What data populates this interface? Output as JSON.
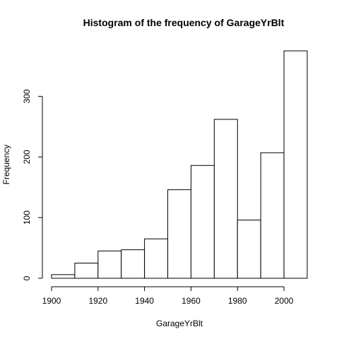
{
  "chart_data": {
    "type": "bar",
    "title": "Histogram of the frequency of GarageYrBlt",
    "xlabel": "GarageYrBlt",
    "ylabel": "Frequency",
    "bins": [
      {
        "x0": 1900,
        "x1": 1910,
        "count": 6
      },
      {
        "x0": 1910,
        "x1": 1920,
        "count": 25
      },
      {
        "x0": 1920,
        "x1": 1930,
        "count": 45
      },
      {
        "x0": 1930,
        "x1": 1940,
        "count": 47
      },
      {
        "x0": 1940,
        "x1": 1950,
        "count": 65
      },
      {
        "x0": 1950,
        "x1": 1960,
        "count": 146
      },
      {
        "x0": 1960,
        "x1": 1970,
        "count": 186
      },
      {
        "x0": 1970,
        "x1": 1980,
        "count": 262
      },
      {
        "x0": 1980,
        "x1": 1990,
        "count": 96
      },
      {
        "x0": 1990,
        "x1": 2000,
        "count": 207
      },
      {
        "x0": 2000,
        "x1": 2010,
        "count": 375
      }
    ],
    "xlim": [
      1900,
      2010
    ],
    "ylim": [
      0,
      375
    ],
    "xticks": [
      1900,
      1920,
      1940,
      1960,
      1980,
      2000
    ],
    "yticks": [
      0,
      100,
      200,
      300
    ],
    "grid": false,
    "legend": "none"
  }
}
